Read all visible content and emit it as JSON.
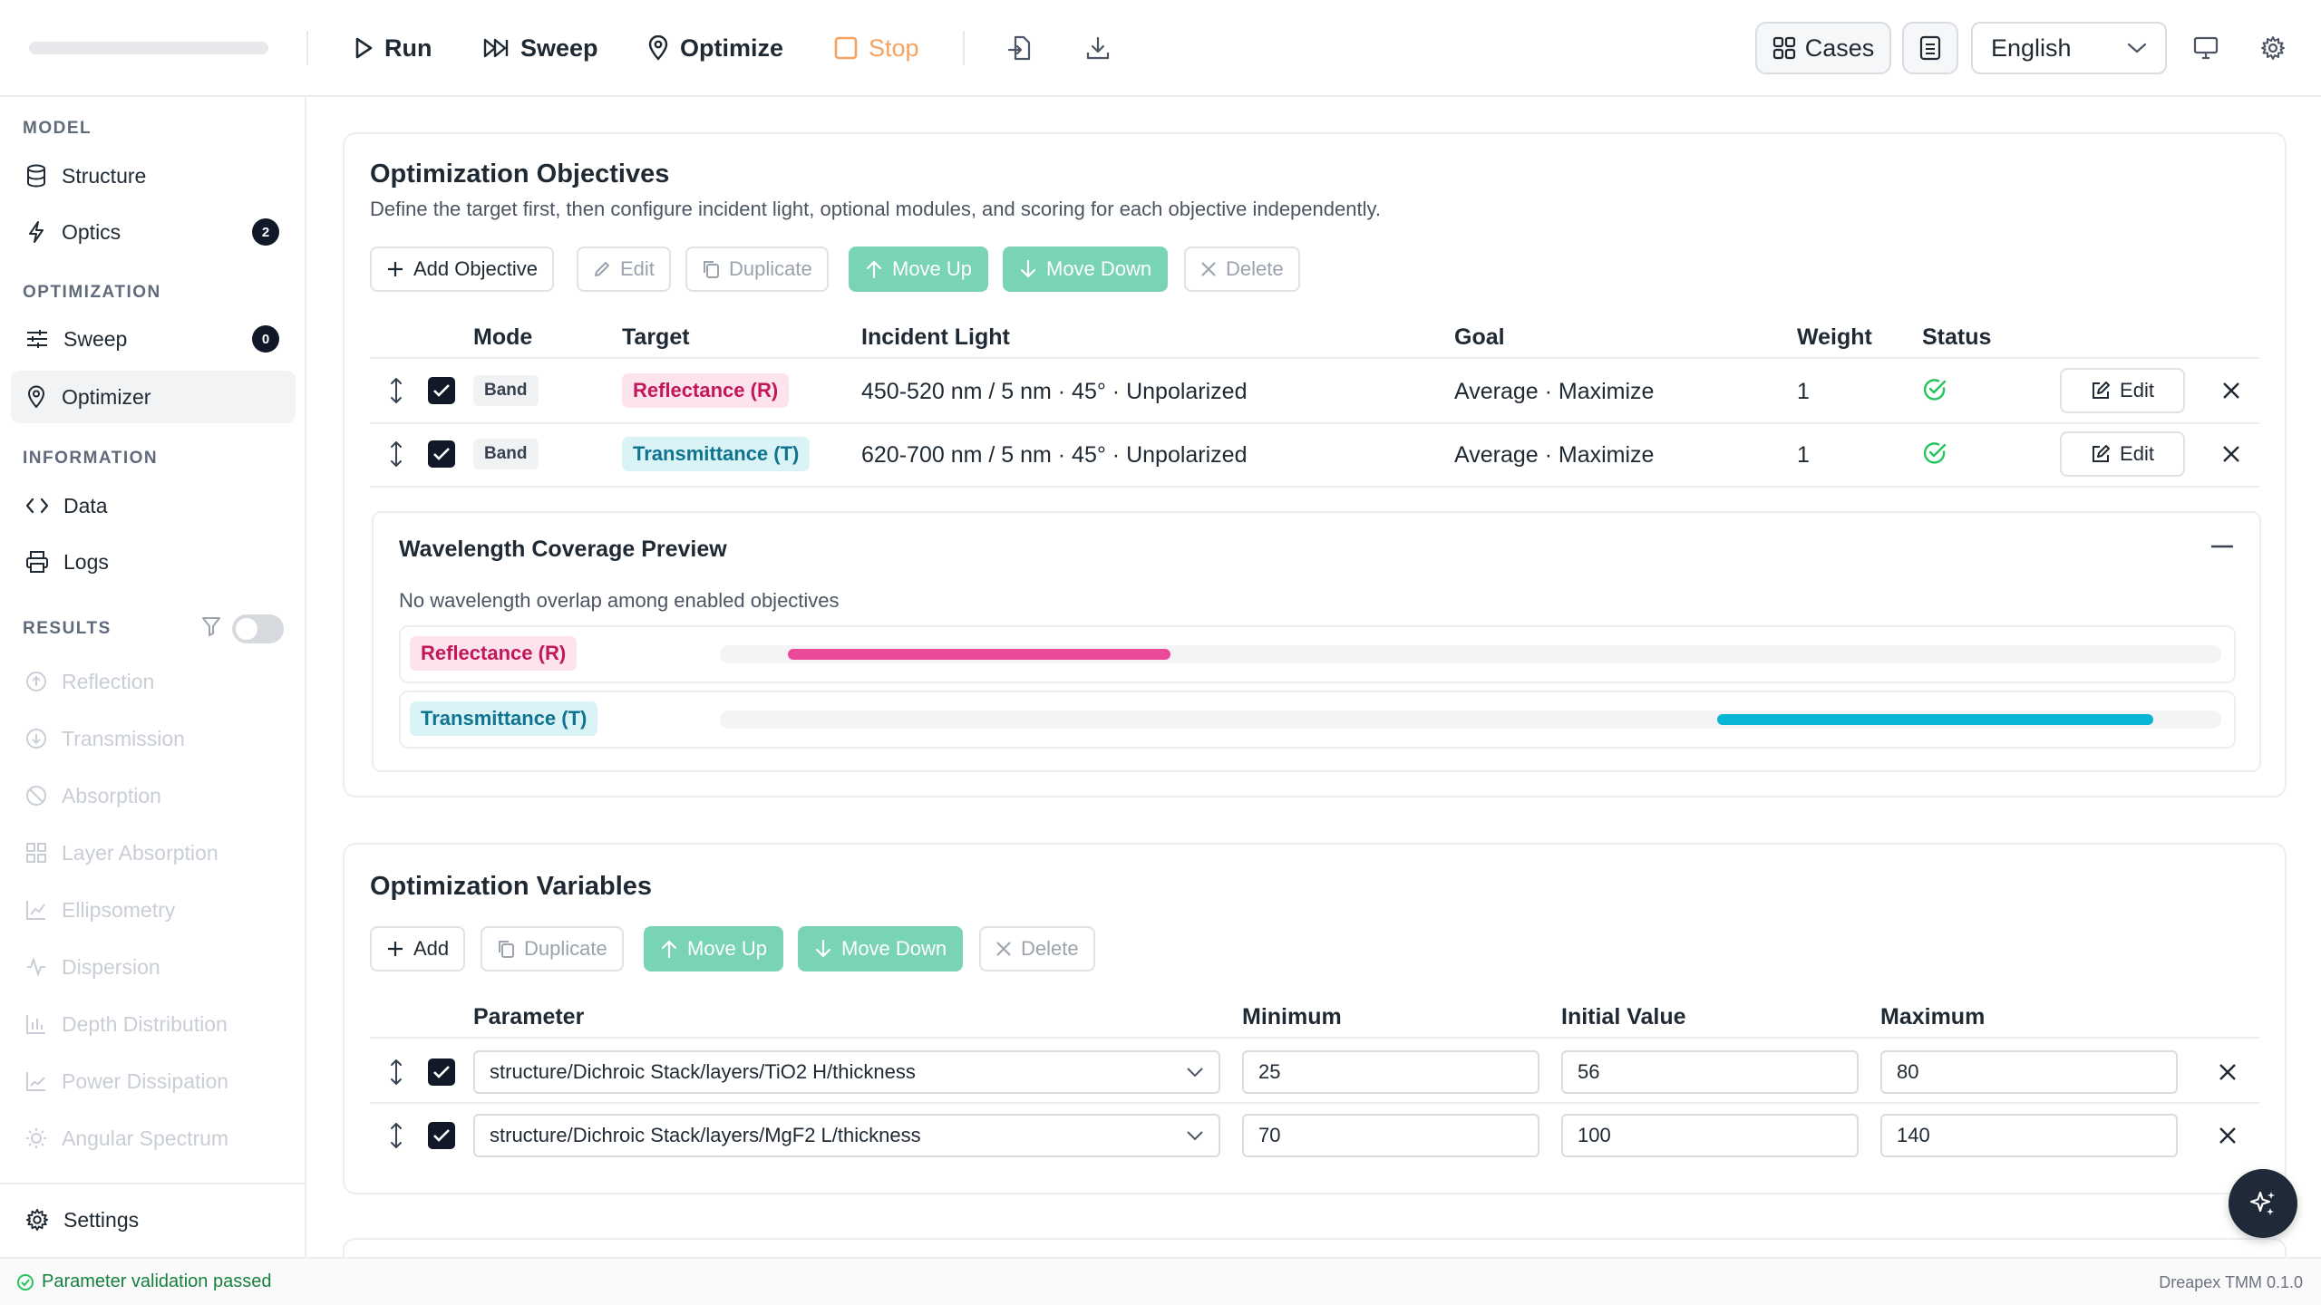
{
  "toolbar": {
    "run_label": "Run",
    "sweep_label": "Sweep",
    "optimize_label": "Optimize",
    "stop_label": "Stop",
    "cases_label": "Cases",
    "language": "English"
  },
  "sidebar": {
    "sections": {
      "model": "MODEL",
      "optimization": "OPTIMIZATION",
      "information": "INFORMATION",
      "results": "RESULTS"
    },
    "items": {
      "structure": "Structure",
      "optics": "Optics",
      "optics_badge": "2",
      "sweep": "Sweep",
      "sweep_badge": "0",
      "optimizer": "Optimizer",
      "data": "Data",
      "logs": "Logs",
      "settings": "Settings"
    },
    "results": [
      "Reflection",
      "Transmission",
      "Absorption",
      "Layer Absorption",
      "Ellipsometry",
      "Dispersion",
      "Depth Distribution",
      "Power Dissipation",
      "Angular Spectrum"
    ]
  },
  "objectives": {
    "title": "Optimization Objectives",
    "description": "Define the target first, then configure incident light, optional modules, and scoring for each objective independently.",
    "buttons": {
      "add": "Add Objective",
      "edit": "Edit",
      "duplicate": "Duplicate",
      "move_up": "Move Up",
      "move_down": "Move Down",
      "delete": "Delete"
    },
    "columns": [
      "Mode",
      "Target",
      "Incident Light",
      "Goal",
      "Weight",
      "Status"
    ],
    "rows": [
      {
        "mode": "Band",
        "target": "Reflectance (R)",
        "light": "450-520 nm / 5 nm · 45° · Unpolarized",
        "goal": "Average · Maximize",
        "weight": "1",
        "edit": "Edit"
      },
      {
        "mode": "Band",
        "target": "Transmittance (T)",
        "light": "620-700 nm / 5 nm · 45° · Unpolarized",
        "goal": "Average · Maximize",
        "weight": "1",
        "edit": "Edit"
      }
    ],
    "preview": {
      "title": "Wavelength Coverage Preview",
      "note": "No wavelength overlap among enabled objectives",
      "rows": [
        {
          "label": "Reflectance (R)",
          "color": "#ec4899",
          "start_frac": 0.045,
          "end_frac": 0.3
        },
        {
          "label": "Transmittance (T)",
          "color": "#06b6d4",
          "start_frac": 0.664,
          "end_frac": 0.955
        }
      ]
    }
  },
  "variables": {
    "title": "Optimization Variables",
    "buttons": {
      "add": "Add",
      "duplicate": "Duplicate",
      "move_up": "Move Up",
      "move_down": "Move Down",
      "delete": "Delete"
    },
    "columns": [
      "Parameter",
      "Minimum",
      "Initial Value",
      "Maximum"
    ],
    "rows": [
      {
        "parameter": "structure/Dichroic Stack/layers/TiO2 H/thickness",
        "min": "25",
        "initial": "56",
        "max": "80"
      },
      {
        "parameter": "structure/Dichroic Stack/layers/MgF2 L/thickness",
        "min": "70",
        "initial": "100",
        "max": "140"
      }
    ]
  },
  "status": {
    "message": "Parameter validation passed",
    "version": "Dreapex TMM 0.1.0"
  },
  "colors": {
    "accent_green": "#79d4b4",
    "reflect_pink": "#ec4899",
    "transmit_cyan": "#06b6d4",
    "stop_orange": "#f4a261",
    "status_green": "#22c55e"
  }
}
